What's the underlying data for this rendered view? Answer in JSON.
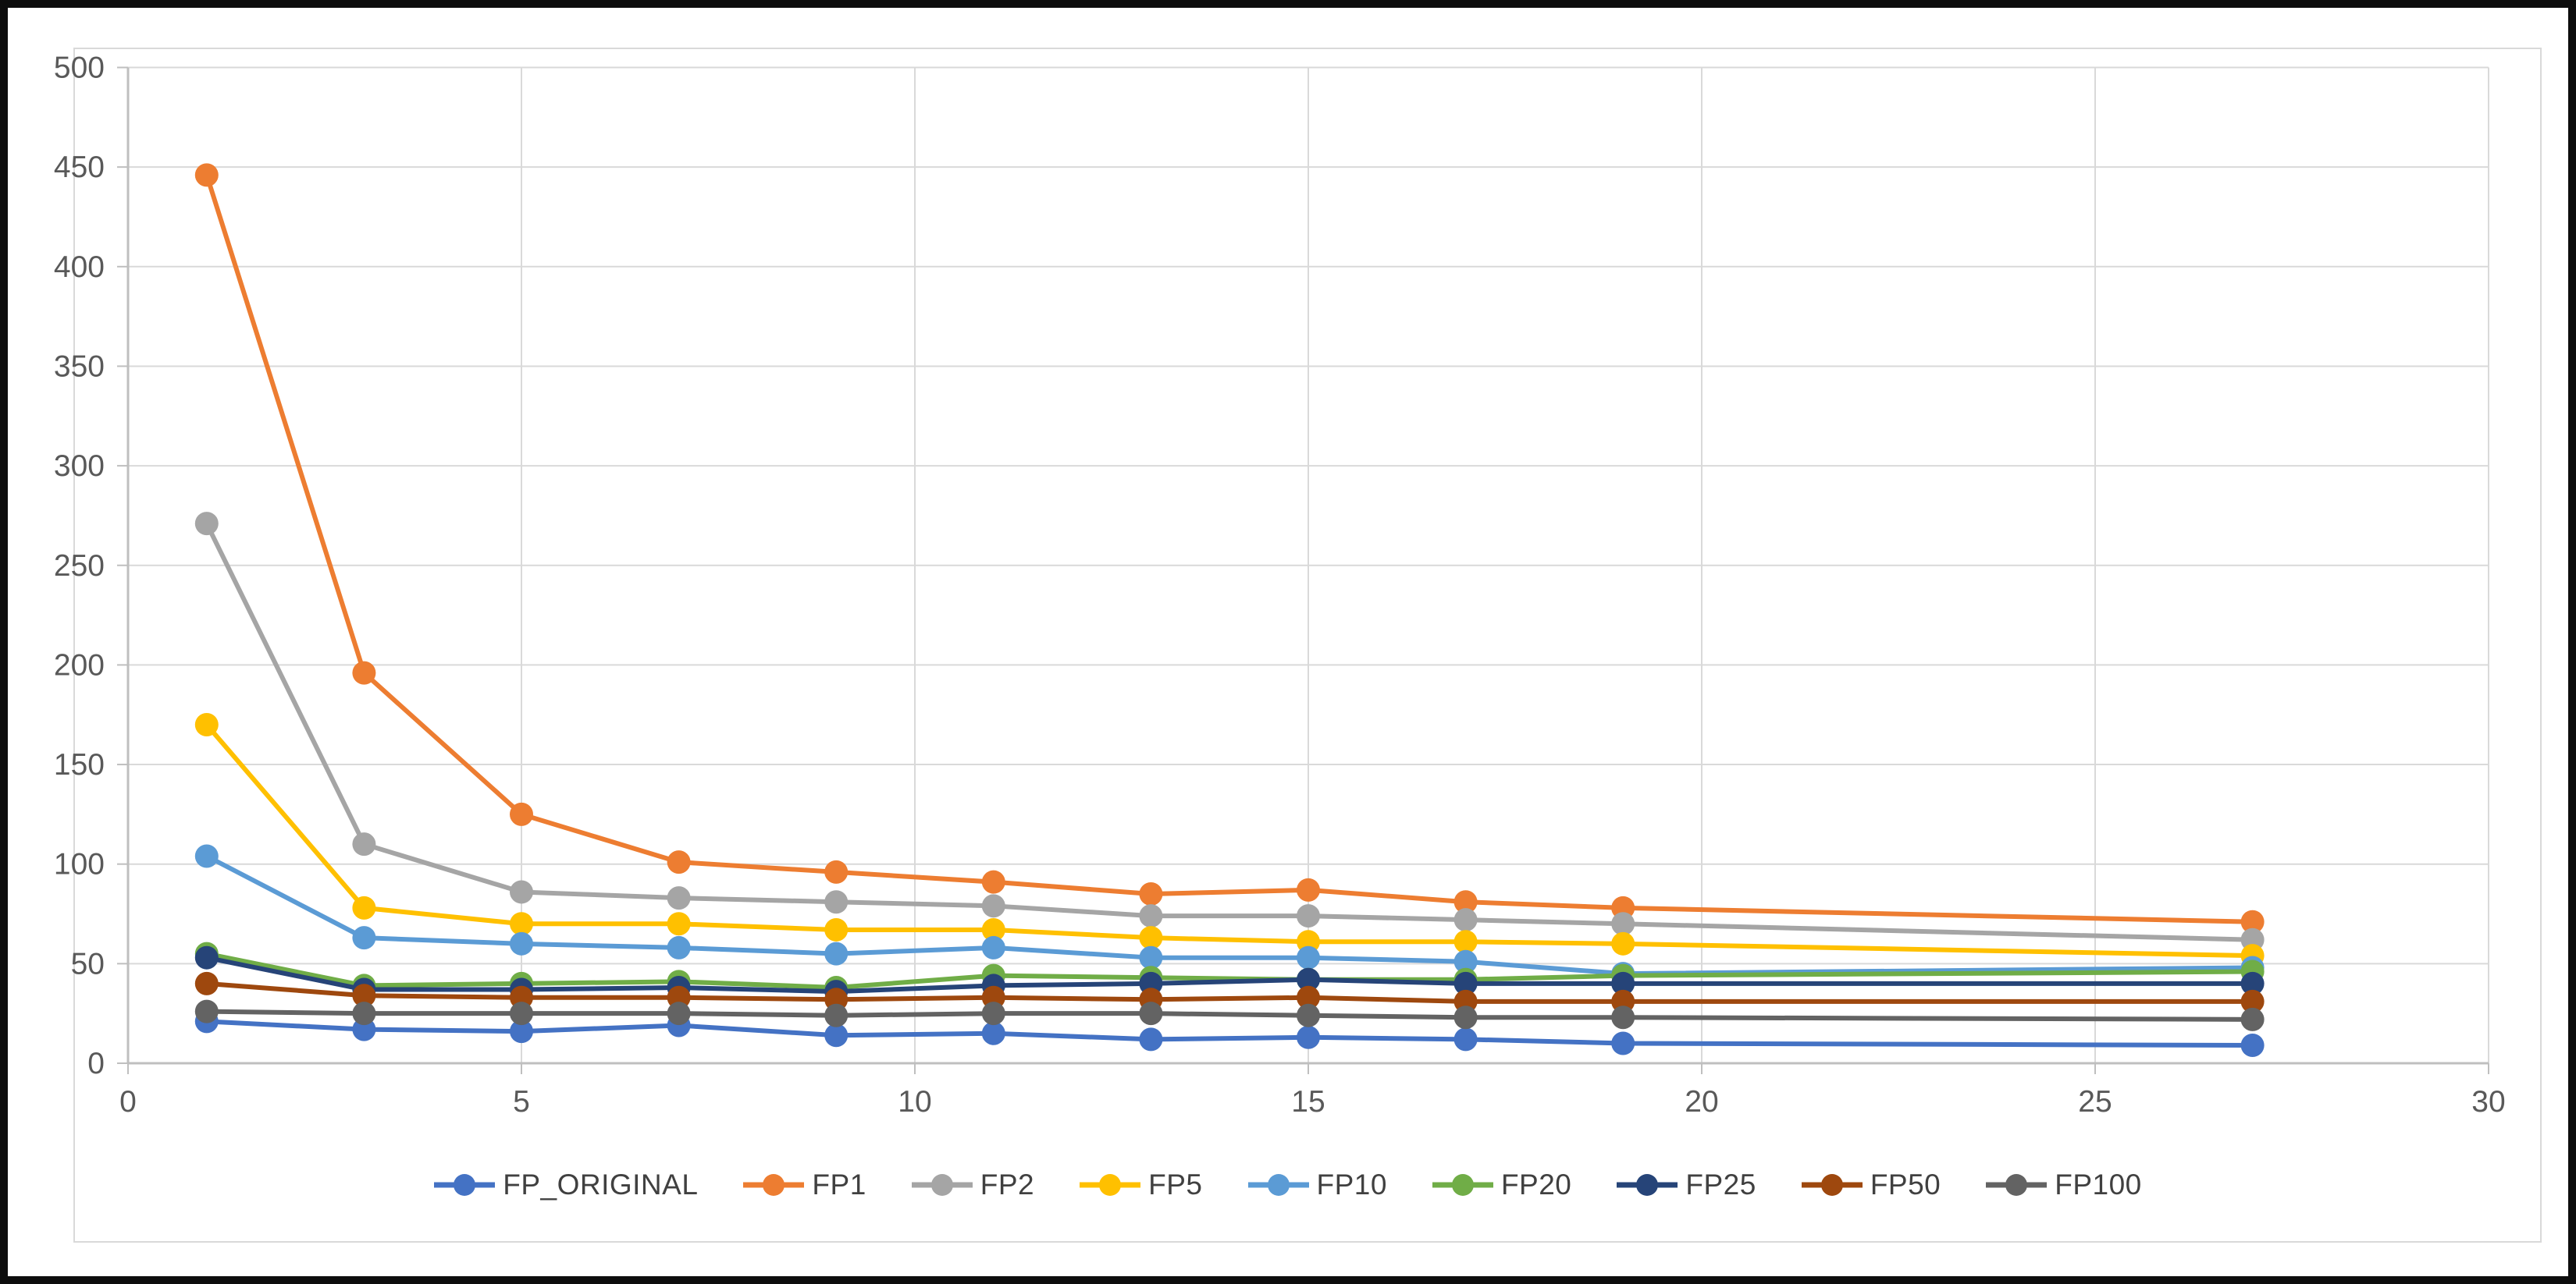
{
  "chart_data": {
    "type": "line",
    "title": "",
    "xlabel": "",
    "ylabel": "",
    "xlim": [
      0,
      30
    ],
    "ylim": [
      0,
      500
    ],
    "x_ticks": [
      0,
      5,
      10,
      15,
      20,
      25,
      30
    ],
    "y_ticks": [
      0,
      50,
      100,
      150,
      200,
      250,
      300,
      350,
      400,
      450,
      500
    ],
    "grid": true,
    "legend_position": "bottom",
    "marker": "circle",
    "x": [
      1,
      3,
      5,
      7,
      9,
      11,
      13,
      15,
      17,
      19,
      27
    ],
    "series": [
      {
        "name": "FP_ORIGINAL",
        "color": "#4472C4",
        "values": [
          21,
          17,
          16,
          19,
          14,
          15,
          12,
          13,
          12,
          10,
          9
        ]
      },
      {
        "name": "FP1",
        "color": "#ED7D31",
        "values": [
          446,
          196,
          125,
          101,
          96,
          91,
          85,
          87,
          81,
          78,
          71
        ]
      },
      {
        "name": "FP2",
        "color": "#A5A5A5",
        "values": [
          271,
          110,
          86,
          83,
          81,
          79,
          74,
          74,
          72,
          70,
          62
        ]
      },
      {
        "name": "FP5",
        "color": "#FFC000",
        "values": [
          170,
          78,
          70,
          70,
          67,
          67,
          63,
          61,
          61,
          60,
          54
        ]
      },
      {
        "name": "FP10",
        "color": "#5B9BD5",
        "values": [
          104,
          63,
          60,
          58,
          55,
          58,
          53,
          53,
          51,
          45,
          48
        ]
      },
      {
        "name": "FP20",
        "color": "#70AD47",
        "values": [
          55,
          39,
          40,
          41,
          38,
          44,
          43,
          42,
          42,
          44,
          46
        ]
      },
      {
        "name": "FP25",
        "color": "#264478",
        "values": [
          53,
          37,
          37,
          38,
          36,
          39,
          40,
          42,
          40,
          40,
          40
        ]
      },
      {
        "name": "FP50",
        "color": "#9E480E",
        "values": [
          40,
          34,
          33,
          33,
          32,
          33,
          32,
          33,
          31,
          31,
          31
        ]
      },
      {
        "name": "FP100",
        "color": "#636363",
        "values": [
          26,
          25,
          25,
          25,
          24,
          25,
          25,
          24,
          23,
          23,
          22
        ]
      }
    ],
    "axis_label_color": "#595959",
    "gridline_color": "#D9D9D9",
    "axis_line_color": "#BFBFBF",
    "chart_border_color": "#D9D9D9"
  }
}
